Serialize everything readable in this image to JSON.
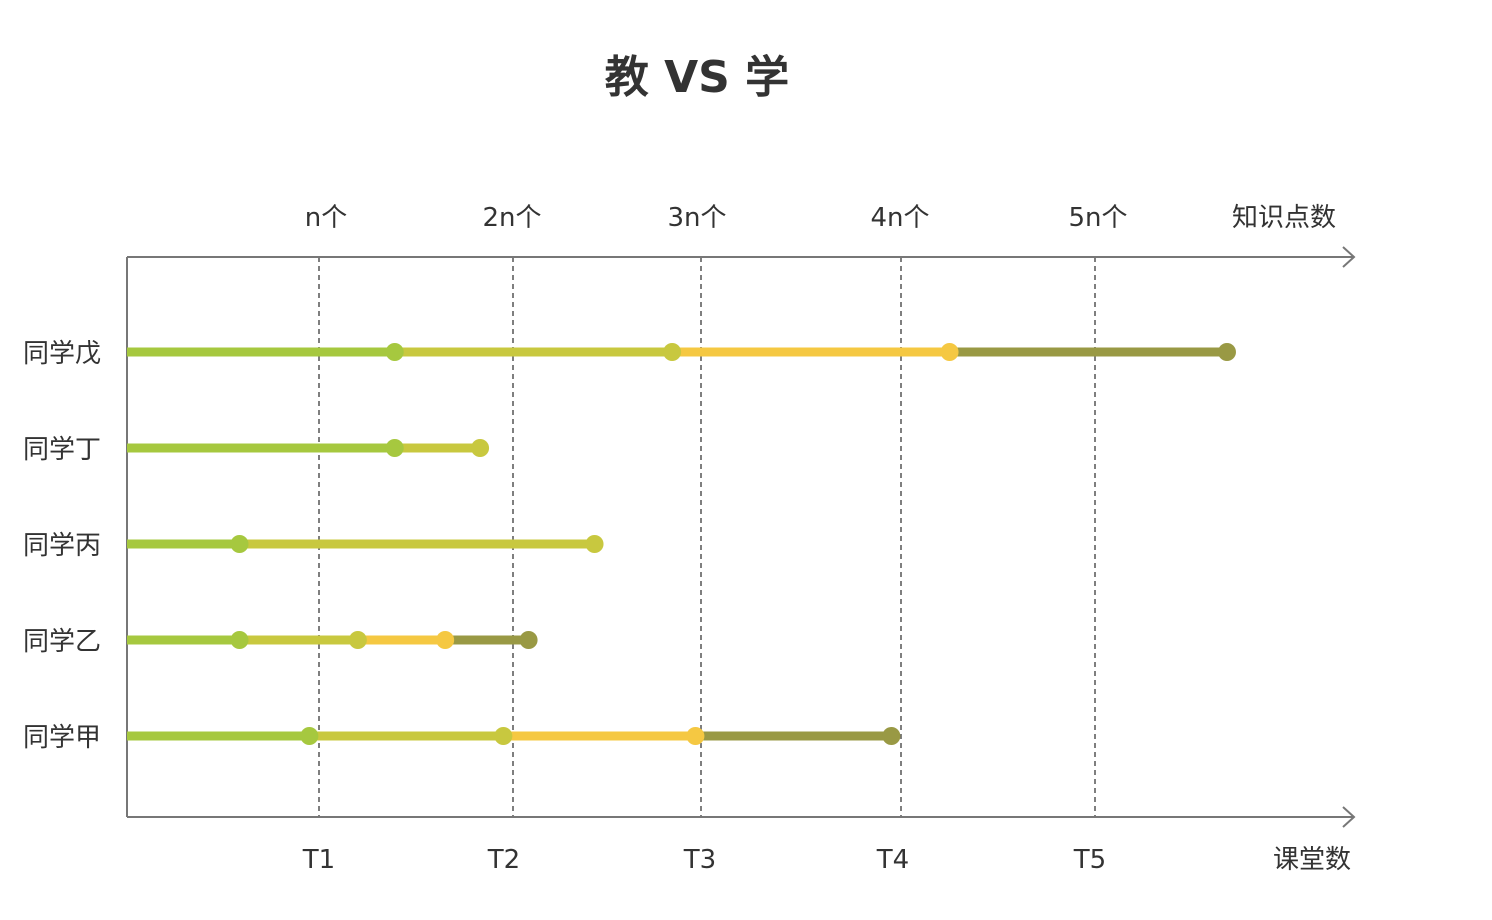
{
  "chart_data": {
    "type": "line",
    "title": "教 VS 学",
    "top_axis": {
      "label": "知识点数",
      "ticks": [
        "n个",
        "2n个",
        "3n个",
        "4n个",
        "5n个"
      ]
    },
    "bottom_axis": {
      "label": "课堂数",
      "ticks": [
        "T1",
        "T2",
        "T3",
        "T4",
        "T5"
      ]
    },
    "xlim": [
      0,
      6.3
    ],
    "grid": "vertical dashed at T1–T5",
    "segment_colors": [
      "#a6c83f",
      "#c8c83f",
      "#f5c842",
      "#999944"
    ],
    "series": [
      {
        "name": "同学戊",
        "points": [
          0,
          1.38,
          2.81,
          4.24,
          5.67
        ]
      },
      {
        "name": "同学丁",
        "points": [
          0,
          1.38,
          1.82
        ]
      },
      {
        "name": "同学丙",
        "points": [
          0,
          0.58,
          2.41
        ]
      },
      {
        "name": "同学乙",
        "points": [
          0,
          0.58,
          1.19,
          1.64,
          2.07
        ]
      },
      {
        "name": "同学甲",
        "points": [
          0,
          0.94,
          1.94,
          2.93,
          3.94
        ]
      }
    ]
  }
}
